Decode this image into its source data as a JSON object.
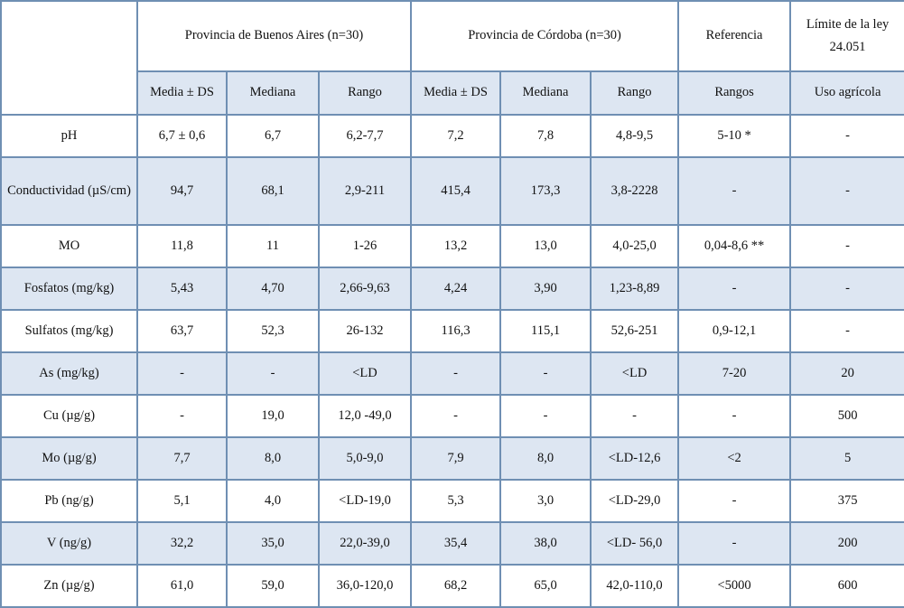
{
  "header": {
    "groups": [
      "Provincia de Buenos Aires (n=30)",
      "Provincia de Córdoba (n=30)",
      "Referencia",
      "Límite de la ley 24.051"
    ],
    "subheaders": [
      "Media ± DS",
      "Mediana",
      "Rango",
      "Media ± DS",
      "Mediana",
      "Rango",
      "Rangos",
      "Uso agrícola"
    ]
  },
  "rows": [
    {
      "label": "pH",
      "cells": [
        "6,7 ± 0,6",
        "6,7",
        "6,2-7,7",
        "7,2",
        "7,8",
        "4,8-9,5",
        "5-10 *",
        "-"
      ]
    },
    {
      "label": "Conductividad (µS/cm)",
      "cells": [
        "94,7",
        "68,1",
        "2,9-211",
        "415,4",
        "173,3",
        "3,8-2228",
        "-",
        "-"
      ]
    },
    {
      "label": "MO",
      "cells": [
        "11,8",
        "11",
        "1-26",
        "13,2",
        "13,0",
        "4,0-25,0",
        "0,04-8,6 **",
        "-"
      ]
    },
    {
      "label": "Fosfatos (mg/kg)",
      "cells": [
        "5,43",
        "4,70",
        "2,66-9,63",
        "4,24",
        "3,90",
        "1,23-8,89",
        "-",
        "-"
      ]
    },
    {
      "label": "Sulfatos (mg/kg)",
      "cells": [
        "63,7",
        "52,3",
        "26-132",
        "116,3",
        "115,1",
        "52,6-251",
        "0,9-12,1",
        "-"
      ]
    },
    {
      "label": "As (mg/kg)",
      "cells": [
        "-",
        "-",
        "<LD",
        "-",
        "-",
        "<LD",
        "7-20",
        "20"
      ]
    },
    {
      "label": "Cu (µg/g)",
      "cells": [
        "-",
        "19,0",
        "12,0 -49,0",
        "-",
        "-",
        "-",
        "-",
        "500"
      ]
    },
    {
      "label": "Mo (µg/g)",
      "cells": [
        "7,7",
        "8,0",
        "5,0-9,0",
        "7,9",
        "8,0",
        "<LD-12,6",
        "<2",
        "5"
      ]
    },
    {
      "label": "Pb (ng/g)",
      "cells": [
        "5,1",
        "4,0",
        "<LD-19,0",
        "5,3",
        "3,0",
        "<LD-29,0",
        "-",
        "375"
      ]
    },
    {
      "label": "V (ng/g)",
      "cells": [
        "32,2",
        "35,0",
        "22,0-39,0",
        "35,4",
        "38,0",
        "<LD- 56,0",
        "-",
        "200"
      ]
    },
    {
      "label": "Zn (µg/g)",
      "cells": [
        "61,0",
        "59,0",
        "36,0-120,0",
        "68,2",
        "65,0",
        "42,0-110,0",
        "<5000",
        "600"
      ]
    }
  ]
}
